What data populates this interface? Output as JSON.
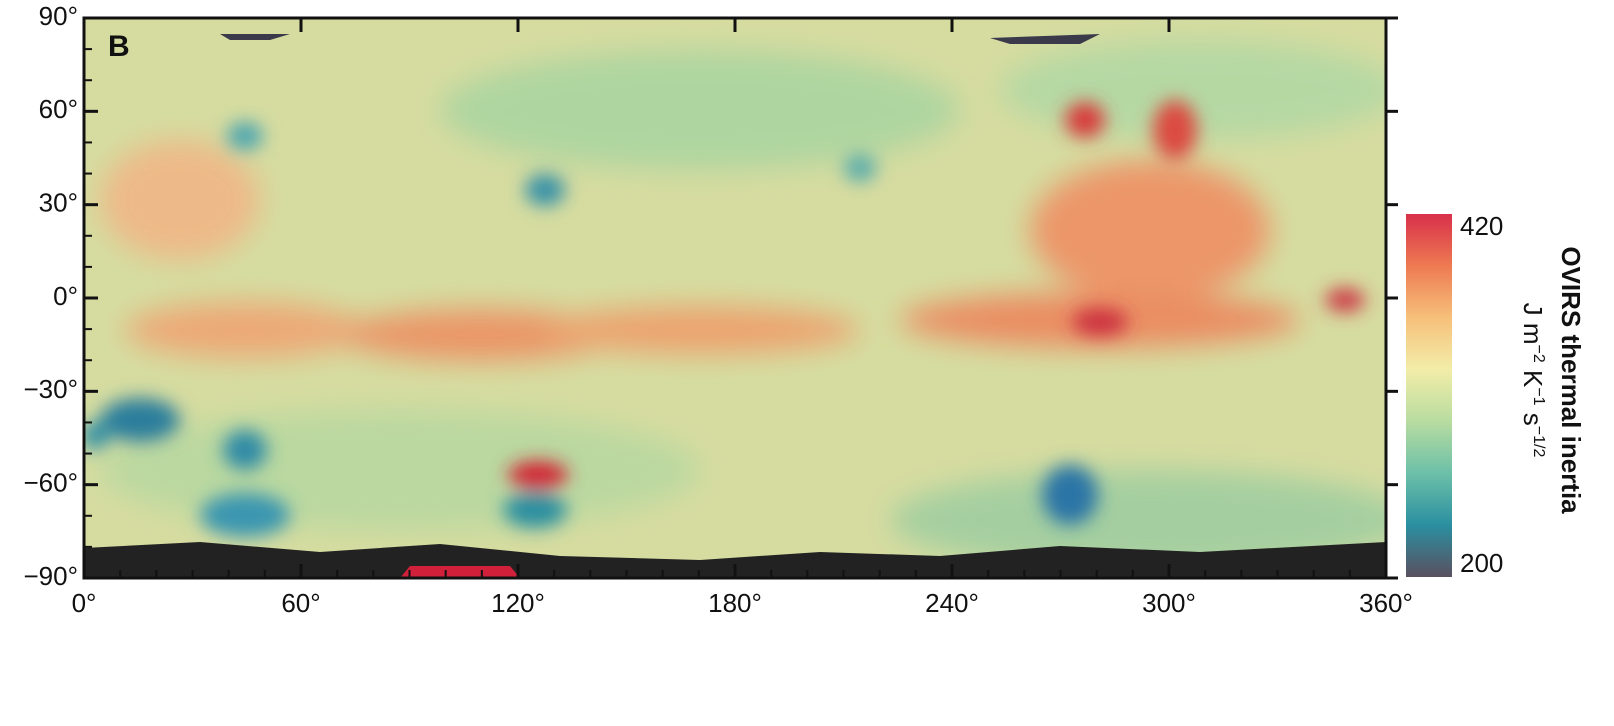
{
  "panel_label": "B",
  "x_axis": {
    "lim": [
      0,
      360
    ],
    "ticks": [
      {
        "value": 0,
        "label": "0°"
      },
      {
        "value": 60,
        "label": "60°"
      },
      {
        "value": 120,
        "label": "120°"
      },
      {
        "value": 180,
        "label": "180°"
      },
      {
        "value": 240,
        "label": "240°"
      },
      {
        "value": 300,
        "label": "300°"
      },
      {
        "value": 360,
        "label": "360°"
      }
    ]
  },
  "y_axis": {
    "lim": [
      -90,
      90
    ],
    "ticks": [
      {
        "value": 90,
        "label": "90°"
      },
      {
        "value": 60,
        "label": "60°"
      },
      {
        "value": 30,
        "label": "30°"
      },
      {
        "value": 0,
        "label": "0°"
      },
      {
        "value": -30,
        "label": "−30°"
      },
      {
        "value": -60,
        "label": "−60°"
      },
      {
        "value": -90,
        "label": "−90°"
      }
    ]
  },
  "colorbar": {
    "title": "OVIRS thermal inertia",
    "units": [
      "J m",
      "−2",
      " K",
      "−1",
      " s",
      "−1/2"
    ],
    "max": 420,
    "min": 200,
    "colors": [
      "#5a5060",
      "#2a8fa0",
      "#6cc0a8",
      "#b8dca0",
      "#f2eda8",
      "#f6c07a",
      "#ee7a52",
      "#d8304a"
    ]
  }
}
